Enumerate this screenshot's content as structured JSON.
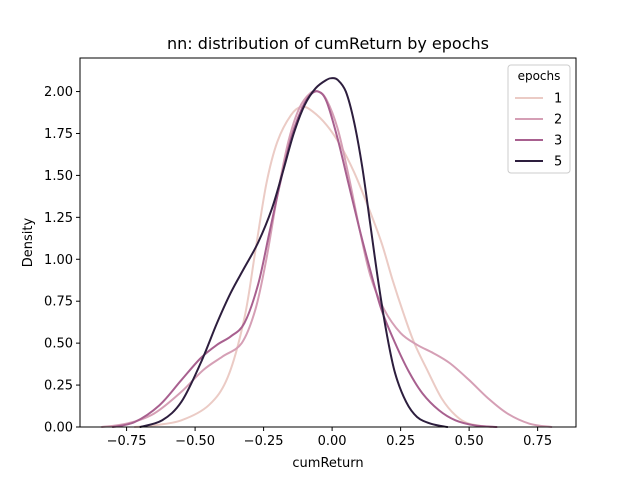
{
  "chart_data": {
    "type": "line",
    "title": "nn: distribution of cumReturn by epochs",
    "xlabel": "cumReturn",
    "ylabel": "Density",
    "xlim": [
      -0.92,
      0.89
    ],
    "ylim": [
      0,
      2.2
    ],
    "xticks": [
      "−0.75",
      "−0.50",
      "−0.25",
      "0.00",
      "0.25",
      "0.50",
      "0.75"
    ],
    "xtick_values": [
      -0.75,
      -0.5,
      -0.25,
      0.0,
      0.25,
      0.5,
      0.75
    ],
    "yticks": [
      "0.00",
      "0.25",
      "0.50",
      "0.75",
      "1.00",
      "1.25",
      "1.50",
      "1.75",
      "2.00"
    ],
    "ytick_values": [
      0,
      0.25,
      0.5,
      0.75,
      1.0,
      1.25,
      1.5,
      1.75,
      2.0
    ],
    "grid": false,
    "legend": {
      "title": "epochs",
      "placement": "upper right"
    },
    "series": [
      {
        "name": "1",
        "color": "#ebcbc5",
        "points": [
          [
            -0.72,
            0.0
          ],
          [
            -0.65,
            0.01
          ],
          [
            -0.55,
            0.04
          ],
          [
            -0.45,
            0.13
          ],
          [
            -0.38,
            0.3
          ],
          [
            -0.32,
            0.65
          ],
          [
            -0.28,
            1.05
          ],
          [
            -0.24,
            1.45
          ],
          [
            -0.2,
            1.7
          ],
          [
            -0.15,
            1.86
          ],
          [
            -0.11,
            1.91
          ],
          [
            -0.07,
            1.88
          ],
          [
            -0.02,
            1.8
          ],
          [
            0.03,
            1.68
          ],
          [
            0.08,
            1.52
          ],
          [
            0.13,
            1.32
          ],
          [
            0.18,
            1.1
          ],
          [
            0.22,
            0.88
          ],
          [
            0.26,
            0.68
          ],
          [
            0.3,
            0.5
          ],
          [
            0.35,
            0.33
          ],
          [
            0.4,
            0.17
          ],
          [
            0.45,
            0.07
          ],
          [
            0.5,
            0.02
          ],
          [
            0.58,
            0.0
          ]
        ]
      },
      {
        "name": "2",
        "color": "#d59fb5",
        "points": [
          [
            -0.84,
            0.0
          ],
          [
            -0.75,
            0.02
          ],
          [
            -0.65,
            0.08
          ],
          [
            -0.55,
            0.21
          ],
          [
            -0.47,
            0.34
          ],
          [
            -0.4,
            0.42
          ],
          [
            -0.33,
            0.5
          ],
          [
            -0.28,
            0.7
          ],
          [
            -0.24,
            1.0
          ],
          [
            -0.2,
            1.38
          ],
          [
            -0.16,
            1.7
          ],
          [
            -0.12,
            1.9
          ],
          [
            -0.08,
            1.99
          ],
          [
            -0.05,
            2.0
          ],
          [
            -0.02,
            1.95
          ],
          [
            0.02,
            1.78
          ],
          [
            0.06,
            1.5
          ],
          [
            0.1,
            1.18
          ],
          [
            0.14,
            0.9
          ],
          [
            0.19,
            0.7
          ],
          [
            0.25,
            0.56
          ],
          [
            0.31,
            0.49
          ],
          [
            0.37,
            0.44
          ],
          [
            0.43,
            0.38
          ],
          [
            0.5,
            0.28
          ],
          [
            0.57,
            0.17
          ],
          [
            0.64,
            0.08
          ],
          [
            0.72,
            0.02
          ],
          [
            0.8,
            0.0
          ]
        ]
      },
      {
        "name": "3",
        "color": "#a8608f",
        "points": [
          [
            -0.8,
            0.0
          ],
          [
            -0.72,
            0.03
          ],
          [
            -0.63,
            0.13
          ],
          [
            -0.55,
            0.28
          ],
          [
            -0.48,
            0.41
          ],
          [
            -0.42,
            0.49
          ],
          [
            -0.37,
            0.54
          ],
          [
            -0.32,
            0.62
          ],
          [
            -0.27,
            0.85
          ],
          [
            -0.23,
            1.15
          ],
          [
            -0.19,
            1.45
          ],
          [
            -0.15,
            1.72
          ],
          [
            -0.11,
            1.9
          ],
          [
            -0.08,
            1.98
          ],
          [
            -0.05,
            2.0
          ],
          [
            -0.02,
            1.94
          ],
          [
            0.02,
            1.72
          ],
          [
            0.06,
            1.45
          ],
          [
            0.1,
            1.18
          ],
          [
            0.14,
            0.93
          ],
          [
            0.18,
            0.7
          ],
          [
            0.23,
            0.5
          ],
          [
            0.28,
            0.33
          ],
          [
            0.33,
            0.2
          ],
          [
            0.39,
            0.1
          ],
          [
            0.45,
            0.04
          ],
          [
            0.52,
            0.01
          ],
          [
            0.6,
            0.0
          ]
        ]
      },
      {
        "name": "5",
        "color": "#2d1e3e",
        "points": [
          [
            -0.7,
            0.0
          ],
          [
            -0.62,
            0.04
          ],
          [
            -0.55,
            0.15
          ],
          [
            -0.48,
            0.38
          ],
          [
            -0.42,
            0.62
          ],
          [
            -0.37,
            0.8
          ],
          [
            -0.32,
            0.95
          ],
          [
            -0.27,
            1.1
          ],
          [
            -0.22,
            1.3
          ],
          [
            -0.18,
            1.52
          ],
          [
            -0.14,
            1.75
          ],
          [
            -0.1,
            1.92
          ],
          [
            -0.06,
            2.02
          ],
          [
            -0.02,
            2.07
          ],
          [
            0.0,
            2.08
          ],
          [
            0.02,
            2.07
          ],
          [
            0.05,
            2.0
          ],
          [
            0.08,
            1.82
          ],
          [
            0.11,
            1.55
          ],
          [
            0.14,
            1.2
          ],
          [
            0.17,
            0.85
          ],
          [
            0.2,
            0.55
          ],
          [
            0.23,
            0.32
          ],
          [
            0.27,
            0.15
          ],
          [
            0.31,
            0.06
          ],
          [
            0.36,
            0.02
          ],
          [
            0.42,
            0.0
          ]
        ]
      }
    ]
  }
}
